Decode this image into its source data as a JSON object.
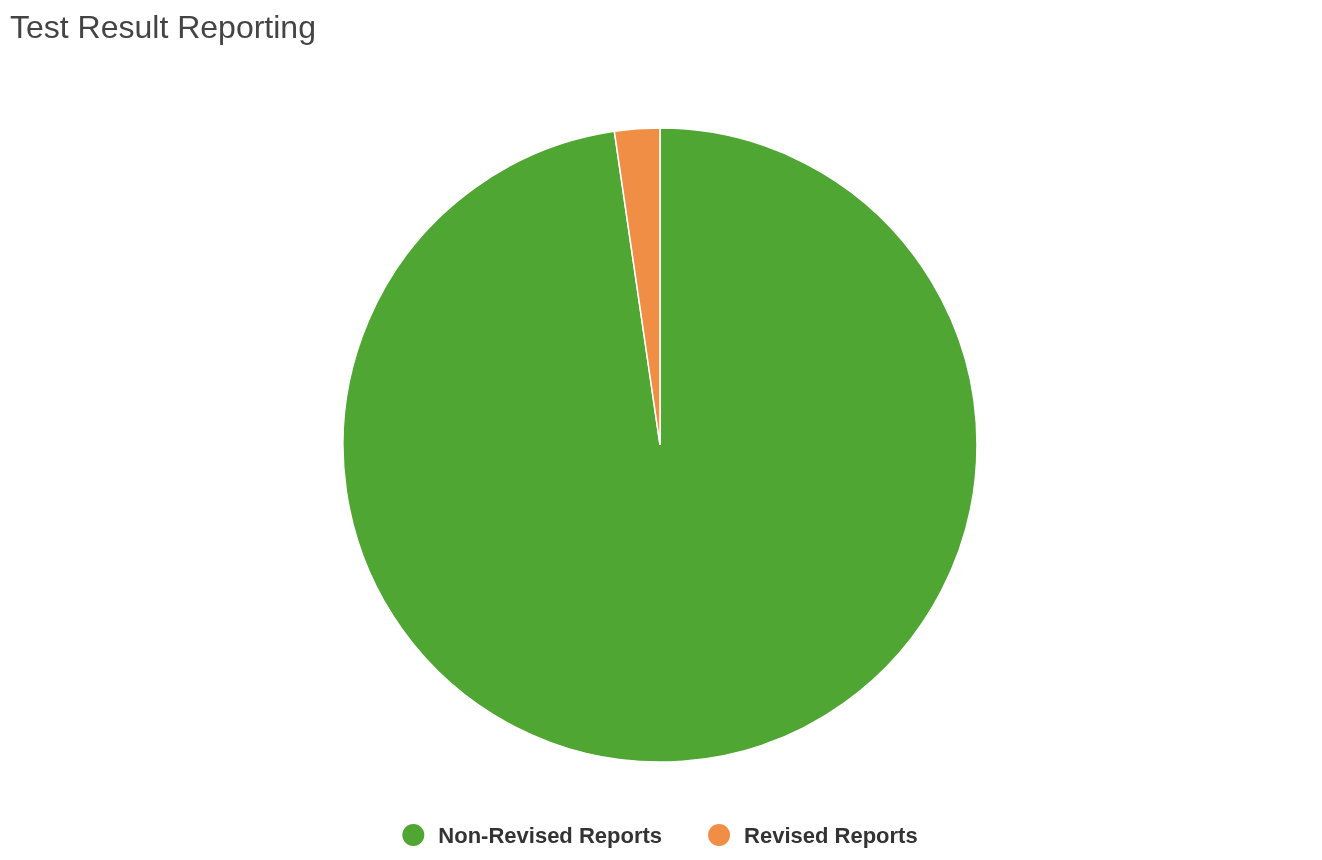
{
  "chart_data": {
    "type": "pie",
    "title": "Test Result Reporting",
    "categories": [
      "Non-Revised Reports",
      "Revised Reports"
    ],
    "values": [
      97.7,
      2.3
    ],
    "colors": [
      "#4fa632",
      "#f08e45"
    ],
    "legend": "bottom"
  }
}
